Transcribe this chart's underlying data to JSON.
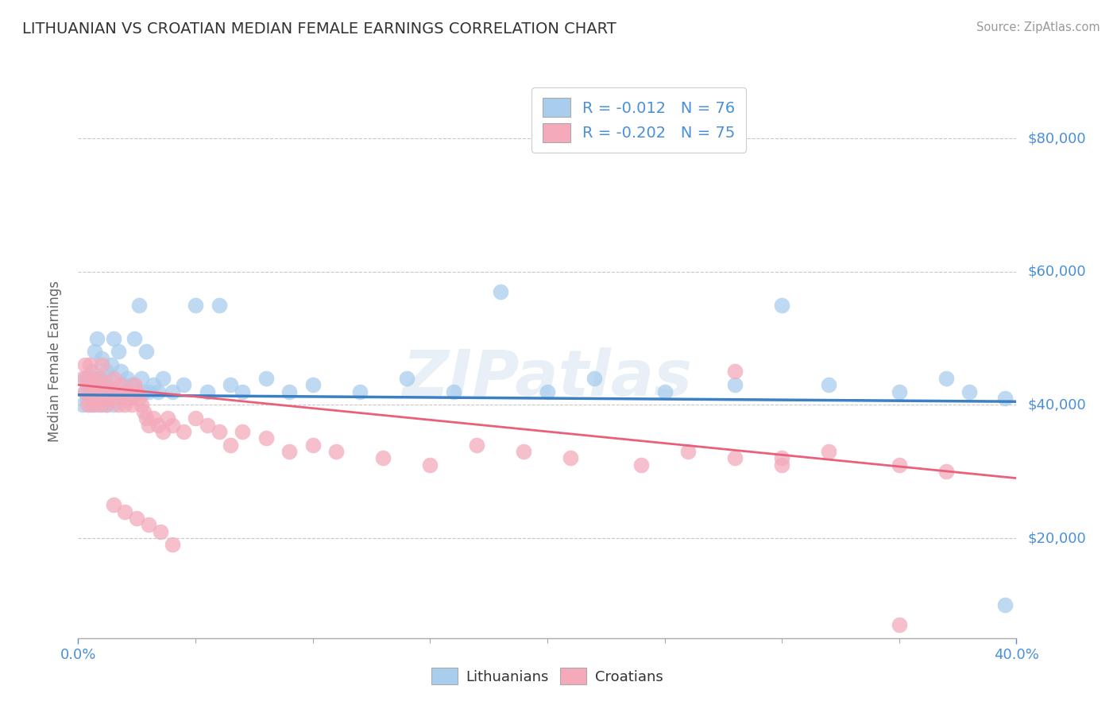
{
  "title": "LITHUANIAN VS CROATIAN MEDIAN FEMALE EARNINGS CORRELATION CHART",
  "source": "Source: ZipAtlas.com",
  "ylabel": "Median Female Earnings",
  "xmin": 0.0,
  "xmax": 0.4,
  "ymin": 5000,
  "ymax": 88000,
  "yticks": [
    20000,
    40000,
    60000,
    80000
  ],
  "xtick_labels": [
    "0.0%",
    "40.0%"
  ],
  "ytick_labels": [
    "$20,000",
    "$40,000",
    "$60,000",
    "$80,000"
  ],
  "blue_label": "Lithuanians",
  "pink_label": "Croatians",
  "legend_r_blue": "R = -0.012",
  "legend_n_blue": "N = 76",
  "legend_r_pink": "R = -0.202",
  "legend_n_pink": "N = 75",
  "blue_color": "#A8CDED",
  "pink_color": "#F4AABB",
  "blue_line_color": "#3B7FC4",
  "pink_line_color": "#E8607A",
  "tick_color": "#4A90D9",
  "watermark": "ZIPatlas",
  "blue_x": [
    0.002,
    0.003,
    0.003,
    0.004,
    0.004,
    0.005,
    0.005,
    0.005,
    0.006,
    0.006,
    0.006,
    0.007,
    0.007,
    0.007,
    0.008,
    0.008,
    0.008,
    0.009,
    0.009,
    0.01,
    0.01,
    0.01,
    0.011,
    0.011,
    0.012,
    0.012,
    0.013,
    0.013,
    0.014,
    0.014,
    0.015,
    0.015,
    0.016,
    0.017,
    0.018,
    0.018,
    0.019,
    0.02,
    0.021,
    0.022,
    0.023,
    0.024,
    0.025,
    0.026,
    0.027,
    0.028,
    0.029,
    0.03,
    0.032,
    0.034,
    0.036,
    0.04,
    0.045,
    0.05,
    0.055,
    0.06,
    0.065,
    0.07,
    0.08,
    0.09,
    0.1,
    0.12,
    0.14,
    0.16,
    0.18,
    0.2,
    0.22,
    0.25,
    0.28,
    0.3,
    0.32,
    0.35,
    0.37,
    0.38,
    0.395,
    0.395
  ],
  "blue_y": [
    40000,
    42000,
    44000,
    41000,
    43000,
    40000,
    42000,
    44000,
    41000,
    43000,
    45000,
    40000,
    42000,
    48000,
    41000,
    43000,
    50000,
    42000,
    44000,
    40000,
    42000,
    47000,
    41000,
    43000,
    40000,
    45000,
    42000,
    44000,
    41000,
    46000,
    40000,
    50000,
    42000,
    48000,
    41000,
    45000,
    43000,
    42000,
    44000,
    41000,
    43000,
    50000,
    42000,
    55000,
    44000,
    42000,
    48000,
    42000,
    43000,
    42000,
    44000,
    42000,
    43000,
    55000,
    42000,
    55000,
    43000,
    42000,
    44000,
    42000,
    43000,
    42000,
    44000,
    42000,
    57000,
    42000,
    44000,
    42000,
    43000,
    55000,
    43000,
    42000,
    44000,
    42000,
    41000,
    10000
  ],
  "pink_x": [
    0.002,
    0.003,
    0.003,
    0.004,
    0.004,
    0.005,
    0.005,
    0.005,
    0.006,
    0.006,
    0.007,
    0.007,
    0.008,
    0.008,
    0.009,
    0.009,
    0.01,
    0.01,
    0.011,
    0.012,
    0.012,
    0.013,
    0.014,
    0.015,
    0.016,
    0.017,
    0.018,
    0.019,
    0.02,
    0.021,
    0.022,
    0.023,
    0.024,
    0.025,
    0.026,
    0.027,
    0.028,
    0.029,
    0.03,
    0.032,
    0.034,
    0.036,
    0.038,
    0.04,
    0.045,
    0.05,
    0.055,
    0.06,
    0.065,
    0.07,
    0.08,
    0.09,
    0.1,
    0.11,
    0.13,
    0.15,
    0.17,
    0.19,
    0.21,
    0.24,
    0.26,
    0.28,
    0.3,
    0.32,
    0.35,
    0.37,
    0.28,
    0.3,
    0.015,
    0.02,
    0.025,
    0.03,
    0.035,
    0.04,
    0.35
  ],
  "pink_y": [
    44000,
    42000,
    46000,
    40000,
    44000,
    42000,
    46000,
    41000,
    43000,
    40000,
    44000,
    42000,
    41000,
    43000,
    40000,
    44000,
    42000,
    46000,
    41000,
    43000,
    40000,
    42000,
    41000,
    44000,
    42000,
    40000,
    43000,
    41000,
    40000,
    42000,
    41000,
    40000,
    43000,
    42000,
    41000,
    40000,
    39000,
    38000,
    37000,
    38000,
    37000,
    36000,
    38000,
    37000,
    36000,
    38000,
    37000,
    36000,
    34000,
    36000,
    35000,
    33000,
    34000,
    33000,
    32000,
    31000,
    34000,
    33000,
    32000,
    31000,
    33000,
    32000,
    31000,
    33000,
    31000,
    30000,
    45000,
    32000,
    25000,
    24000,
    23000,
    22000,
    21000,
    19000,
    7000
  ]
}
